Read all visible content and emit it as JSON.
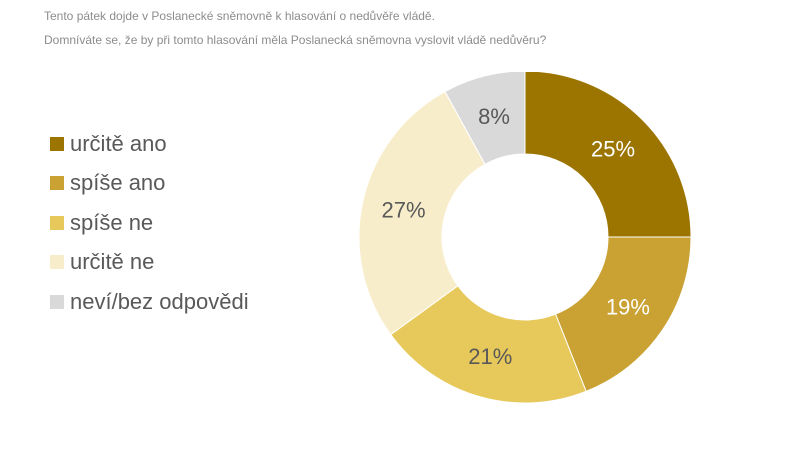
{
  "question": {
    "line1": "Tento pátek dojde v Poslanecké sněmovně k hlasování o nedůvěře vládě.",
    "line2": "Domníváte se, že by při tomto hlasování měla Poslanecká  sněmovna vyslovit vládě nedůvěru?"
  },
  "chart_data": {
    "type": "pie",
    "variant": "donut",
    "title": "",
    "legend_position": "left",
    "categories": [
      "určitě ano",
      "spíše ano",
      "spíše ne",
      "určitě ne",
      "neví/bez odpovědi"
    ],
    "values": [
      25,
      19,
      21,
      27,
      8
    ],
    "value_labels": [
      "25%",
      "19%",
      "21%",
      "27%",
      "8%"
    ],
    "colors": [
      "#9c7500",
      "#c9a233",
      "#e6c95a",
      "#f8edca",
      "#d9d9d9"
    ],
    "label_colors": [
      "#ffffff",
      "#ffffff",
      "#595959",
      "#595959",
      "#595959"
    ]
  }
}
